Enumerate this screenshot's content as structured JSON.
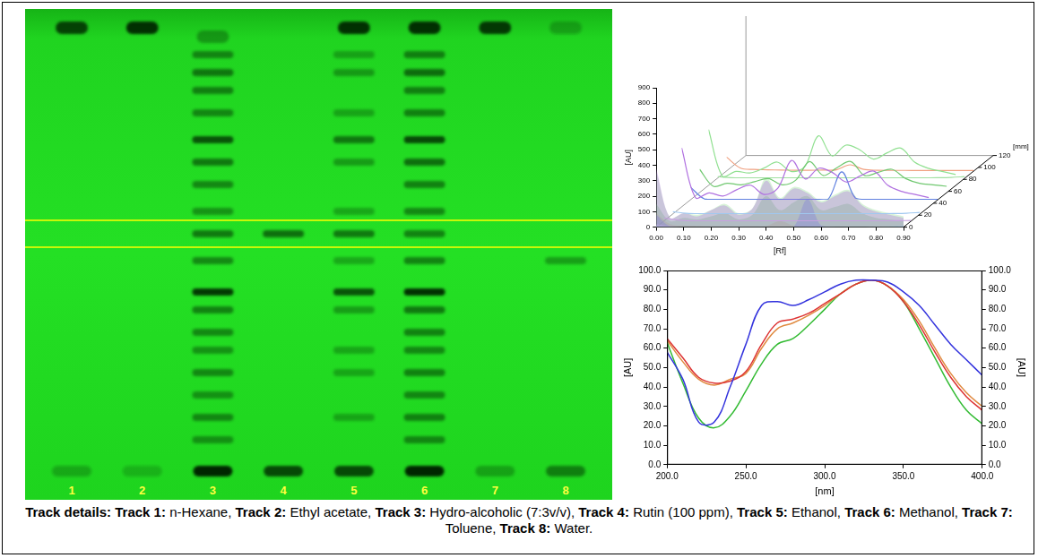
{
  "figure": {
    "plate": {
      "highlight_rf": [
        0.5,
        0.56
      ],
      "tracks": [
        {
          "label": "1",
          "bands": [
            {
              "rf": 0.99,
              "density": 0.85
            },
            {
              "rf": 0.0,
              "density": 0.25
            }
          ]
        },
        {
          "label": "2",
          "bands": [
            {
              "rf": 0.99,
              "density": 0.95
            },
            {
              "rf": 0.0,
              "density": 0.2
            }
          ]
        },
        {
          "label": "3",
          "bands": [
            {
              "rf": 0.97,
              "density": 0.35
            },
            {
              "rf": 0.93,
              "density": 0.45
            },
            {
              "rf": 0.89,
              "density": 0.55
            },
            {
              "rf": 0.85,
              "density": 0.5
            },
            {
              "rf": 0.8,
              "density": 0.45
            },
            {
              "rf": 0.74,
              "density": 0.75
            },
            {
              "rf": 0.69,
              "density": 0.55
            },
            {
              "rf": 0.64,
              "density": 0.45
            },
            {
              "rf": 0.58,
              "density": 0.4
            },
            {
              "rf": 0.53,
              "density": 0.55
            },
            {
              "rf": 0.47,
              "density": 0.45
            },
            {
              "rf": 0.4,
              "density": 0.9
            },
            {
              "rf": 0.36,
              "density": 0.5
            },
            {
              "rf": 0.31,
              "density": 0.45
            },
            {
              "rf": 0.27,
              "density": 0.4
            },
            {
              "rf": 0.22,
              "density": 0.45
            },
            {
              "rf": 0.17,
              "density": 0.4
            },
            {
              "rf": 0.12,
              "density": 0.45
            },
            {
              "rf": 0.07,
              "density": 0.4
            },
            {
              "rf": 0.0,
              "density": 1.0
            }
          ]
        },
        {
          "label": "4",
          "bands": [
            {
              "rf": 0.53,
              "density": 0.6
            },
            {
              "rf": 0.0,
              "density": 0.8
            }
          ]
        },
        {
          "label": "5",
          "bands": [
            {
              "rf": 0.99,
              "density": 0.95
            },
            {
              "rf": 0.93,
              "density": 0.3
            },
            {
              "rf": 0.89,
              "density": 0.35
            },
            {
              "rf": 0.8,
              "density": 0.3
            },
            {
              "rf": 0.74,
              "density": 0.55
            },
            {
              "rf": 0.69,
              "density": 0.35
            },
            {
              "rf": 0.58,
              "density": 0.3
            },
            {
              "rf": 0.53,
              "density": 0.55
            },
            {
              "rf": 0.47,
              "density": 0.3
            },
            {
              "rf": 0.4,
              "density": 0.75
            },
            {
              "rf": 0.36,
              "density": 0.35
            },
            {
              "rf": 0.27,
              "density": 0.3
            },
            {
              "rf": 0.22,
              "density": 0.3
            },
            {
              "rf": 0.12,
              "density": 0.3
            },
            {
              "rf": 0.0,
              "density": 0.8
            }
          ]
        },
        {
          "label": "6",
          "bands": [
            {
              "rf": 0.99,
              "density": 0.95
            },
            {
              "rf": 0.93,
              "density": 0.5
            },
            {
              "rf": 0.89,
              "density": 0.6
            },
            {
              "rf": 0.85,
              "density": 0.5
            },
            {
              "rf": 0.8,
              "density": 0.5
            },
            {
              "rf": 0.74,
              "density": 0.8
            },
            {
              "rf": 0.69,
              "density": 0.6
            },
            {
              "rf": 0.64,
              "density": 0.5
            },
            {
              "rf": 0.58,
              "density": 0.45
            },
            {
              "rf": 0.53,
              "density": 0.5
            },
            {
              "rf": 0.47,
              "density": 0.5
            },
            {
              "rf": 0.4,
              "density": 0.95
            },
            {
              "rf": 0.36,
              "density": 0.55
            },
            {
              "rf": 0.31,
              "density": 0.5
            },
            {
              "rf": 0.27,
              "density": 0.45
            },
            {
              "rf": 0.22,
              "density": 0.5
            },
            {
              "rf": 0.17,
              "density": 0.45
            },
            {
              "rf": 0.12,
              "density": 0.5
            },
            {
              "rf": 0.07,
              "density": 0.45
            },
            {
              "rf": 0.0,
              "density": 1.0
            }
          ]
        },
        {
          "label": "7",
          "bands": [
            {
              "rf": 0.99,
              "density": 0.9
            },
            {
              "rf": 0.0,
              "density": 0.3
            }
          ]
        },
        {
          "label": "8",
          "bands": [
            {
              "rf": 0.99,
              "density": 0.25
            },
            {
              "rf": 0.47,
              "density": 0.35
            },
            {
              "rf": 0.0,
              "density": 0.5
            }
          ]
        }
      ]
    },
    "caption": {
      "heading": "Track details:",
      "items": [
        {
          "label": "Track 1:",
          "text": "n-Hexane,"
        },
        {
          "label": "Track 2:",
          "text": "Ethyl acetate,"
        },
        {
          "label": "Track 3:",
          "text": "Hydro-alcoholic (7:3v/v),"
        },
        {
          "label": "Track 4:",
          "text": "Rutin (100 ppm),"
        },
        {
          "label": "Track 5:",
          "text": "Ethanol,"
        },
        {
          "label": "Track 6:",
          "text": "Methanol,"
        },
        {
          "label": "Track 7:",
          "text": "Toluene,"
        },
        {
          "label": "Track 8:",
          "text": "Water."
        }
      ]
    }
  },
  "chart_data": [
    {
      "type": "line",
      "x_label": "[Rf]",
      "y_label": "[AU]",
      "z_label": "[mm]",
      "grid": false,
      "x": [
        0,
        0.05,
        0.1,
        0.15,
        0.2,
        0.25,
        0.3,
        0.35,
        0.4,
        0.45,
        0.5,
        0.55,
        0.6,
        0.65,
        0.7,
        0.75,
        0.8,
        0.85,
        0.9
      ],
      "xlim": [
        0,
        0.9
      ],
      "xticks": [
        {
          "value": 0,
          "label": "0.00"
        },
        {
          "value": 0.1,
          "label": "0.10"
        },
        {
          "value": 0.2,
          "label": "0.20"
        },
        {
          "value": 0.3,
          "label": "0.30"
        },
        {
          "value": 0.4,
          "label": "0.40"
        },
        {
          "value": 0.5,
          "label": "0.50"
        },
        {
          "value": 0.6,
          "label": "0.60"
        },
        {
          "value": 0.7,
          "label": "0.70"
        },
        {
          "value": 0.8,
          "label": "0.80"
        },
        {
          "value": 0.9,
          "label": "0.90"
        }
      ],
      "ylim": [
        0,
        900
      ],
      "yticks": [
        0,
        100,
        200,
        300,
        400,
        500,
        600,
        700,
        800,
        900
      ],
      "zlim": [
        0,
        120
      ],
      "zticks": [
        0,
        20,
        40,
        60,
        80,
        100,
        120
      ],
      "series": [
        {
          "z": 10,
          "color": "#c8a0e0",
          "values": [
            20,
            8,
            2,
            2,
            2,
            2,
            2,
            2,
            2,
            2,
            2,
            2,
            2,
            2,
            2,
            2,
            2,
            3,
            5
          ]
        },
        {
          "z": 22,
          "color": "#a0c8f0",
          "values": [
            15,
            5,
            2,
            2,
            2,
            2,
            2,
            2,
            2,
            2,
            2,
            2,
            2,
            2,
            2,
            2,
            3,
            5,
            10
          ]
        },
        {
          "z": 34,
          "color": "#b070e0",
          "values": [
            380,
            60,
            90,
            70,
            110,
            140,
            80,
            120,
            300,
            180,
            250,
            220,
            160,
            200,
            230,
            140,
            100,
            80,
            60
          ]
        },
        {
          "z": 46,
          "color": "#6080e0",
          "values": [
            80,
            5,
            2,
            2,
            2,
            2,
            2,
            2,
            2,
            2,
            2,
            180,
            10,
            2,
            2,
            2,
            2,
            2,
            2
          ]
        },
        {
          "z": 58,
          "color": "#70c870",
          "values": [
            150,
            40,
            60,
            50,
            70,
            90,
            50,
            80,
            200,
            110,
            160,
            200,
            110,
            130,
            150,
            90,
            60,
            50,
            40
          ]
        },
        {
          "z": 70,
          "color": "#90e090",
          "values": [
            360,
            60,
            90,
            80,
            110,
            150,
            90,
            120,
            320,
            190,
            260,
            230,
            170,
            210,
            240,
            150,
            110,
            90,
            70
          ]
        },
        {
          "z": 82,
          "color": "#a0e0a0",
          "values": [
            10,
            3,
            2,
            2,
            2,
            2,
            2,
            2,
            2,
            2,
            2,
            2,
            2,
            2,
            2,
            2,
            3,
            5,
            10
          ]
        },
        {
          "z": 94,
          "color": "#f0a080",
          "values": [
            90,
            20,
            10,
            8,
            6,
            5,
            5,
            6,
            8,
            40,
            10,
            5,
            4,
            4,
            3,
            3,
            3,
            3,
            3
          ]
        }
      ]
    },
    {
      "type": "line",
      "x_label": "[nm]",
      "y_label": "[AU]",
      "y2_label": "[AU]",
      "grid": false,
      "x": [
        200,
        210,
        220,
        230,
        240,
        250,
        260,
        270,
        280,
        290,
        300,
        310,
        320,
        330,
        340,
        350,
        360,
        370,
        380,
        390,
        400
      ],
      "xlim": [
        200,
        400
      ],
      "xticks": [
        {
          "value": 200,
          "label": "200.0"
        },
        {
          "value": 250,
          "label": "250.0"
        },
        {
          "value": 300,
          "label": "300.0"
        },
        {
          "value": 350,
          "label": "350.0"
        },
        {
          "value": 400,
          "label": "400.0"
        }
      ],
      "ylim": [
        0,
        100
      ],
      "yticks": [
        {
          "value": 0,
          "label": "0.0"
        },
        {
          "value": 10,
          "label": "10.0"
        },
        {
          "value": 20,
          "label": "20.0"
        },
        {
          "value": 30,
          "label": "30.0"
        },
        {
          "value": 40,
          "label": "40.0"
        },
        {
          "value": 50,
          "label": "50.0"
        },
        {
          "value": 60,
          "label": "60.0"
        },
        {
          "value": 70,
          "label": "70.0"
        },
        {
          "value": 80,
          "label": "80.0"
        },
        {
          "value": 90,
          "label": "90.0"
        },
        {
          "value": 100,
          "label": "100.0"
        }
      ],
      "y2lim": [
        0,
        100
      ],
      "y2ticks": [
        {
          "value": 0,
          "label": "0.0"
        },
        {
          "value": 10,
          "label": "10.0"
        },
        {
          "value": 20,
          "label": "20.0"
        },
        {
          "value": 30,
          "label": "30.0"
        },
        {
          "value": 40,
          "label": "40.0"
        },
        {
          "value": 50,
          "label": "50.0"
        },
        {
          "value": 60,
          "label": "60.0"
        },
        {
          "value": 70,
          "label": "70.0"
        },
        {
          "value": 80,
          "label": "80.0"
        },
        {
          "value": 90,
          "label": "90.0"
        },
        {
          "value": 100,
          "label": "100.0"
        }
      ],
      "series": [
        {
          "color": "#3333dd",
          "values": [
            58,
            44,
            22,
            22,
            40,
            62,
            82,
            84,
            82,
            85,
            89,
            93,
            95,
            95,
            94,
            89,
            82,
            72,
            62,
            54,
            46
          ]
        },
        {
          "color": "#dd3333",
          "values": [
            65,
            55,
            45,
            42,
            43,
            48,
            62,
            73,
            75,
            78,
            83,
            88,
            93,
            95,
            92,
            84,
            72,
            58,
            45,
            35,
            28
          ]
        },
        {
          "color": "#e08a40",
          "values": [
            64,
            53,
            44,
            41,
            44,
            47,
            60,
            70,
            73,
            77,
            82,
            88,
            93,
            95,
            92,
            85,
            74,
            60,
            47,
            37,
            30
          ]
        },
        {
          "color": "#33bb33",
          "values": [
            63,
            42,
            24,
            19,
            25,
            38,
            52,
            62,
            65,
            72,
            80,
            88,
            93,
            95,
            92,
            84,
            70,
            55,
            40,
            28,
            21
          ]
        }
      ]
    }
  ]
}
